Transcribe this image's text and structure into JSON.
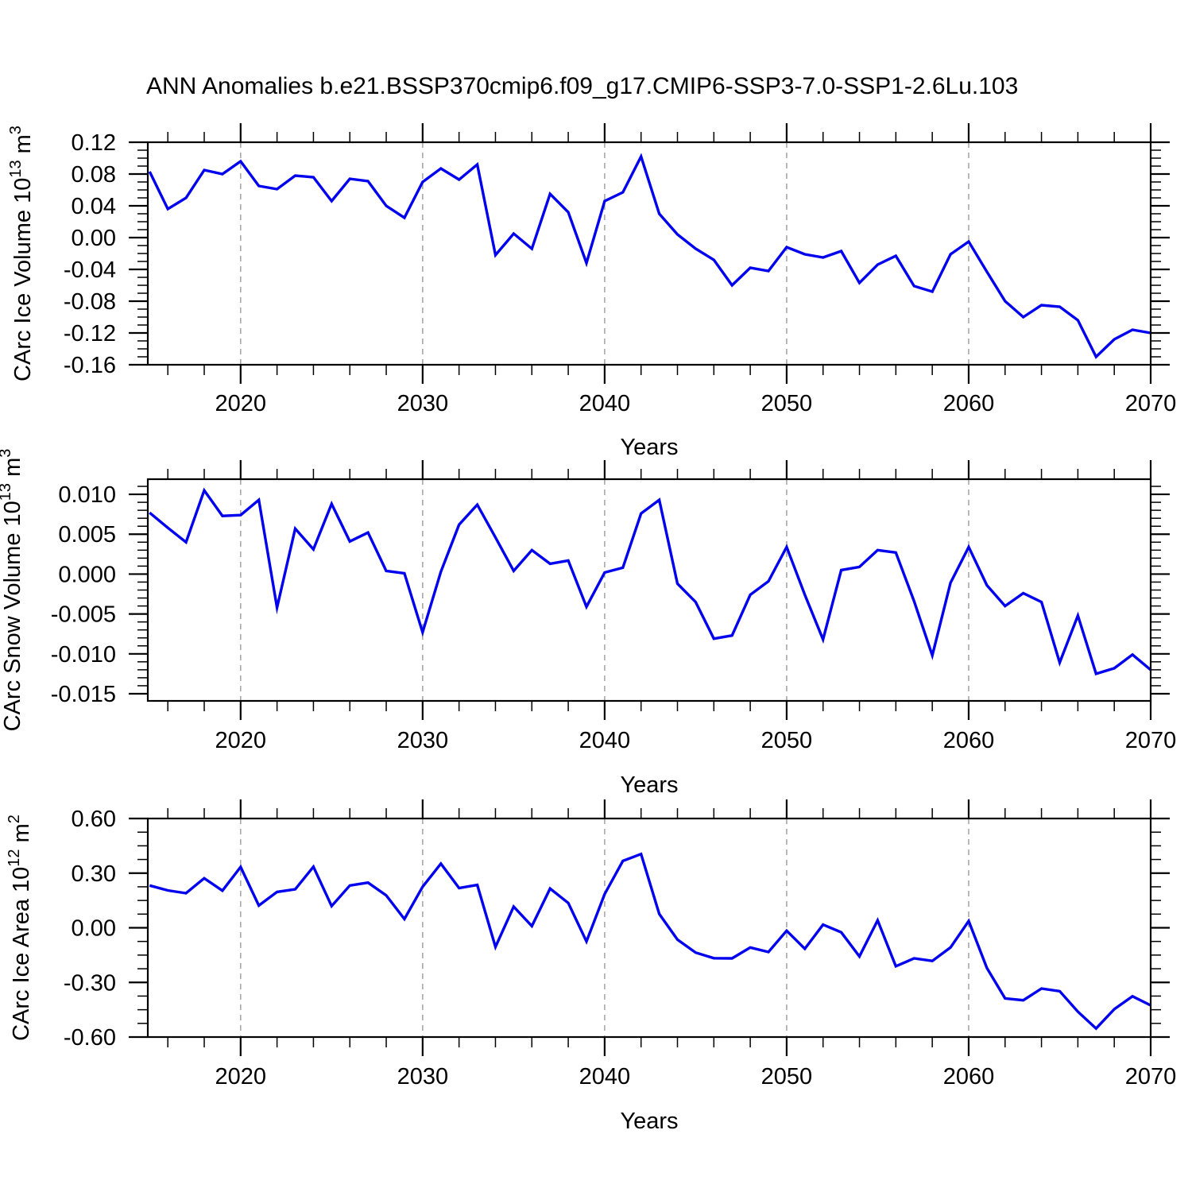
{
  "figure": {
    "title": "ANN Anomalies b.e21.BSSP370cmip6.f09_g17.CMIP6-SSP3-7.0-SSP1-2.6Lu.103",
    "line_color": "#0000ee",
    "grid_color": "#a8a8a8",
    "axis_color": "#000000"
  },
  "chart_data": [
    {
      "type": "line",
      "id": "ice-volume",
      "title": "ANN Anomalies b.e21.BSSP370cmip6.f09_g17.CMIP6-SSP3-7.0-SSP1-2.6Lu.103",
      "xlabel": "Years",
      "ylabel": "CArc Ice Volume 10^13^ m^3^",
      "xlim": [
        2014.9,
        2070
      ],
      "ylim": [
        -0.16,
        0.12
      ],
      "x_major_ticks": [
        2020,
        2030,
        2040,
        2050,
        2060,
        2070
      ],
      "x_tick_labels": [
        "2020",
        "2030",
        "2040",
        "2050",
        "2060",
        "2070"
      ],
      "x_minor_step": 2,
      "x_gridlines": [
        2020,
        2030,
        2040,
        2050,
        2060
      ],
      "yticks": [
        0.12,
        0.08,
        0.04,
        0.0,
        -0.04,
        -0.08,
        -0.12,
        -0.16
      ],
      "ytick_labels": [
        "0.12",
        "0.08",
        "0.04",
        "0.00",
        "-0.04",
        "-0.08",
        "-0.12",
        "-0.16"
      ],
      "y_minor_step": 0.01,
      "grid": true,
      "legend": "none",
      "x_start": 2015,
      "x_step": 1,
      "values": [
        0.083,
        0.036,
        0.05,
        0.085,
        0.08,
        0.096,
        0.065,
        0.061,
        0.078,
        0.076,
        0.046,
        0.074,
        0.071,
        0.04,
        0.025,
        0.07,
        0.087,
        0.073,
        0.092,
        -0.022,
        0.005,
        -0.014,
        0.055,
        0.032,
        -0.032,
        0.046,
        0.057,
        0.102,
        0.03,
        0.004,
        -0.014,
        -0.028,
        -0.06,
        -0.038,
        -0.042,
        -0.012,
        -0.021,
        -0.025,
        -0.017,
        -0.057,
        -0.034,
        -0.023,
        -0.061,
        -0.068,
        -0.021,
        -0.005,
        -0.043,
        -0.08,
        -0.1,
        -0.085,
        -0.087,
        -0.104,
        -0.15,
        -0.128,
        -0.116,
        -0.12
      ]
    },
    {
      "type": "line",
      "id": "snow-volume",
      "title": "",
      "xlabel": "Years",
      "ylabel": "CArc Snow Volume 10^13^ m^3^",
      "xlim": [
        2014.9,
        2070
      ],
      "ylim": [
        -0.0159,
        0.0119
      ],
      "x_major_ticks": [
        2020,
        2030,
        2040,
        2050,
        2060,
        2070
      ],
      "x_tick_labels": [
        "2020",
        "2030",
        "2040",
        "2050",
        "2060",
        "2070"
      ],
      "x_minor_step": 2,
      "x_gridlines": [
        2020,
        2030,
        2040,
        2050,
        2060
      ],
      "yticks": [
        0.01,
        0.005,
        0.0,
        -0.005,
        -0.01,
        -0.015
      ],
      "ytick_labels": [
        "0.010",
        "0.005",
        "0.000",
        "-0.005",
        "-0.010",
        "-0.015"
      ],
      "y_minor_step": 0.001,
      "grid": true,
      "legend": "none",
      "x_start": 2015,
      "x_step": 1,
      "values": [
        0.0077,
        0.0058,
        0.004,
        0.0105,
        0.0073,
        0.0074,
        0.0093,
        -0.0042,
        0.0057,
        0.0031,
        0.0088,
        0.0041,
        0.0052,
        0.0004,
        0.0001,
        -0.0073,
        0.0003,
        0.0062,
        0.0087,
        0.0046,
        0.0004,
        0.003,
        0.0013,
        0.0017,
        -0.0041,
        0.0002,
        0.0008,
        0.0076,
        0.0093,
        -0.0012,
        -0.0035,
        -0.0081,
        -0.0077,
        -0.0026,
        -0.0009,
        0.0034,
        -0.0026,
        -0.0082,
        0.0005,
        0.0009,
        0.003,
        0.0027,
        -0.0034,
        -0.0102,
        -0.0011,
        0.0034,
        -0.0014,
        -0.004,
        -0.0024,
        -0.0035,
        -0.0111,
        -0.0052,
        -0.0125,
        -0.0118,
        -0.0101,
        -0.012
      ]
    },
    {
      "type": "line",
      "id": "ice-area",
      "title": "",
      "xlabel": "Years",
      "ylabel": "CArc Ice Area 10^12^ m^2^",
      "xlim": [
        2014.9,
        2070
      ],
      "ylim": [
        -0.6,
        0.6
      ],
      "x_major_ticks": [
        2020,
        2030,
        2040,
        2050,
        2060,
        2070
      ],
      "x_tick_labels": [
        "2020",
        "2030",
        "2040",
        "2050",
        "2060",
        "2070"
      ],
      "x_minor_step": 2,
      "x_gridlines": [
        2020,
        2030,
        2040,
        2050,
        2060
      ],
      "yticks": [
        0.6,
        0.3,
        0.0,
        -0.3,
        -0.6
      ],
      "ytick_labels": [
        "0.60",
        "0.30",
        "0.00",
        "-0.30",
        "-0.60"
      ],
      "y_minor_step": 0.075,
      "grid": true,
      "legend": "none",
      "x_start": 2015,
      "x_step": 1,
      "values": [
        0.232,
        0.205,
        0.19,
        0.272,
        0.204,
        0.334,
        0.122,
        0.197,
        0.211,
        0.335,
        0.119,
        0.232,
        0.248,
        0.178,
        0.048,
        0.225,
        0.352,
        0.218,
        0.235,
        -0.105,
        0.116,
        0.009,
        0.215,
        0.136,
        -0.075,
        0.185,
        0.367,
        0.405,
        0.076,
        -0.065,
        -0.136,
        -0.167,
        -0.168,
        -0.108,
        -0.133,
        -0.016,
        -0.115,
        0.017,
        -0.025,
        -0.157,
        0.041,
        -0.211,
        -0.168,
        -0.182,
        -0.108,
        0.037,
        -0.221,
        -0.388,
        -0.398,
        -0.334,
        -0.348,
        -0.461,
        -0.553,
        -0.447,
        -0.376,
        -0.426
      ]
    }
  ]
}
